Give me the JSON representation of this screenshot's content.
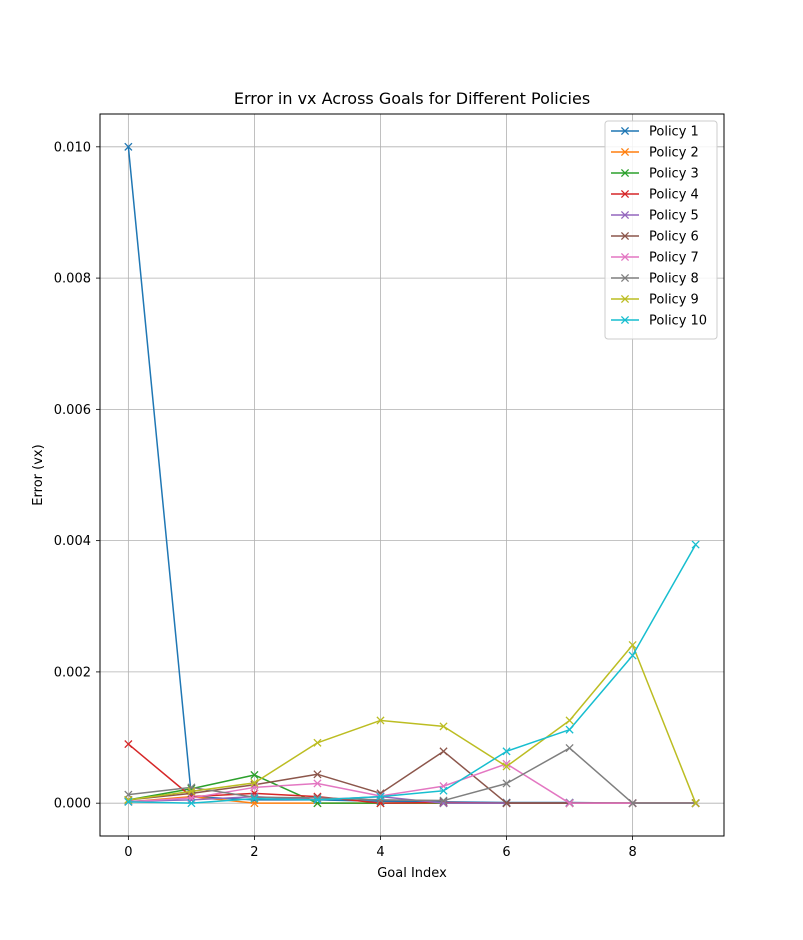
{
  "chart_data": {
    "type": "line",
    "title": "Error in vx Across Goals for Different Policies",
    "xlabel": "Goal Index",
    "ylabel": "Error (vx)",
    "xlim": [
      -0.45,
      9.45
    ],
    "ylim": [
      -0.0005,
      0.0105
    ],
    "xticks": [
      0,
      2,
      4,
      6,
      8
    ],
    "xtick_labels": [
      "0",
      "2",
      "4",
      "6",
      "8"
    ],
    "yticks": [
      0.0,
      0.002,
      0.004,
      0.006,
      0.008,
      0.01
    ],
    "ytick_labels": [
      "0.000",
      "0.002",
      "0.004",
      "0.006",
      "0.008",
      "0.010"
    ],
    "grid": true,
    "legend_position": "upper right",
    "marker": "x",
    "x": [
      0,
      1,
      2,
      3,
      4,
      5,
      6,
      7,
      8,
      9
    ],
    "series": [
      {
        "name": "Policy 1",
        "color": "#1f77b4",
        "values": [
          0.01,
          0.0001,
          5e-05,
          5e-05,
          3e-05,
          2e-05,
          1e-05,
          1e-05,
          0.0,
          0.0
        ]
      },
      {
        "name": "Policy 2",
        "color": "#ff7f0e",
        "values": [
          2e-05,
          0.0001,
          0.0,
          0.0,
          0.0,
          0.0,
          0.0,
          0.0,
          0.0,
          0.0
        ]
      },
      {
        "name": "Policy 3",
        "color": "#2ca02c",
        "values": [
          5e-05,
          0.00022,
          0.00043,
          0.0,
          0.0,
          0.0,
          0.0,
          0.0,
          0.0,
          0.0
        ]
      },
      {
        "name": "Policy 4",
        "color": "#d62728",
        "values": [
          0.0009,
          0.0001,
          0.00015,
          0.0001,
          0.0,
          1e-05,
          0.0,
          0.0,
          0.0,
          0.0
        ]
      },
      {
        "name": "Policy 5",
        "color": "#9467bd",
        "values": [
          3e-05,
          5e-05,
          0.0001,
          5e-05,
          0.0001,
          0.0,
          0.0,
          0.0,
          0.0,
          0.0
        ]
      },
      {
        "name": "Policy 6",
        "color": "#8c564b",
        "values": [
          5e-05,
          0.00015,
          0.00028,
          0.00044,
          0.00015,
          0.00079,
          0.0,
          0.0,
          0.0,
          0.0
        ]
      },
      {
        "name": "Policy 7",
        "color": "#e377c2",
        "values": [
          2e-05,
          8e-05,
          0.00024,
          0.0003,
          0.00011,
          0.00026,
          0.0006,
          0.0,
          0.0,
          0.0
        ]
      },
      {
        "name": "Policy 8",
        "color": "#7f7f7f",
        "values": [
          0.00013,
          0.00024,
          9e-05,
          8e-05,
          5e-05,
          4e-05,
          0.0003,
          0.00084,
          0.0,
          0.0
        ]
      },
      {
        "name": "Policy 9",
        "color": "#bcbd22",
        "values": [
          5e-05,
          0.00018,
          0.00031,
          0.00092,
          0.00126,
          0.00117,
          0.00056,
          0.00126,
          0.00241,
          0.0
        ]
      },
      {
        "name": "Policy 10",
        "color": "#17becf",
        "values": [
          2e-05,
          0.0,
          7e-05,
          5e-05,
          0.0001,
          0.00019,
          0.00079,
          0.00112,
          0.00225,
          0.00394
        ]
      }
    ]
  }
}
